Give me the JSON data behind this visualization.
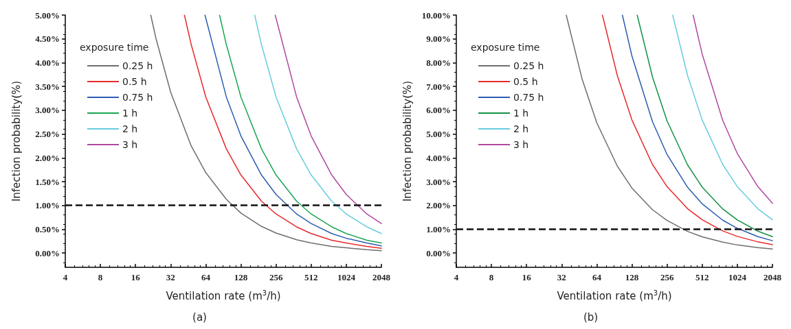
{
  "chart_data": [
    {
      "type": "line",
      "xlabel": "Ventilation rate (m$^{3}$/h)",
      "ylabel": "Infection probability(%)",
      "legend_title": "exposure time",
      "annotations": [
        "(a)"
      ],
      "log": "x",
      "xlim": [
        4,
        2048
      ],
      "xticks": [
        4,
        8,
        16,
        32,
        64,
        128,
        256,
        512,
        1024,
        2048
      ],
      "ylim": [
        -0.3,
        5
      ],
      "yticks": [
        {
          "value": 0,
          "label": "0.00%"
        },
        {
          "value": 0.5,
          "label": "0.50%"
        },
        {
          "value": 1,
          "label": "1.00%"
        },
        {
          "value": 1.5,
          "label": "1.50%"
        },
        {
          "value": 2,
          "label": "2.00%"
        },
        {
          "value": 2.5,
          "label": "2.50%"
        },
        {
          "value": 3,
          "label": "3.00%"
        },
        {
          "value": 3.5,
          "label": "3.50%"
        },
        {
          "value": 4,
          "label": "4.00%"
        },
        {
          "value": 4.5,
          "label": "4.50%"
        },
        {
          "value": 5,
          "label": "5.00%"
        }
      ],
      "grid": false,
      "legend": "top left",
      "marker": "none",
      "line_style": "solid",
      "ref_lines": [
        {
          "axis": "y",
          "value": 1,
          "color": "#111111",
          "line_style": "dashed"
        }
      ],
      "series": [
        {
          "name": "0.25 h",
          "color": "#6d6d6d",
          "x": [
            21.6,
            24,
            32,
            48,
            64,
            96,
            128,
            192,
            256,
            384,
            512,
            768,
            1024,
            1536,
            2048
          ],
          "values": [
            5.0,
            4.5,
            3.38,
            2.25,
            1.69,
            1.13,
            0.84,
            0.56,
            0.42,
            0.28,
            0.21,
            0.14,
            0.11,
            0.07,
            0.05
          ]
        },
        {
          "name": "0.5 h",
          "color": "#e8282a",
          "x": [
            42,
            48,
            64,
            96,
            128,
            192,
            256,
            384,
            512,
            768,
            1024,
            1536,
            2048
          ],
          "values": [
            5.0,
            4.38,
            3.28,
            2.19,
            1.64,
            1.09,
            0.82,
            0.55,
            0.41,
            0.27,
            0.21,
            0.14,
            0.1
          ]
        },
        {
          "name": "0.75 h",
          "color": "#2a5db0",
          "x": [
            63,
            96,
            128,
            192,
            256,
            384,
            512,
            768,
            1024,
            1536,
            2048
          ],
          "values": [
            5.0,
            3.28,
            2.46,
            1.64,
            1.23,
            0.82,
            0.62,
            0.41,
            0.31,
            0.21,
            0.15
          ]
        },
        {
          "name": "1 h",
          "color": "#1aa550",
          "x": [
            84,
            96,
            128,
            192,
            256,
            384,
            512,
            768,
            1024,
            1536,
            2048
          ],
          "values": [
            5.0,
            4.38,
            3.28,
            2.19,
            1.64,
            1.09,
            0.82,
            0.55,
            0.41,
            0.27,
            0.21
          ]
        },
        {
          "name": "2 h",
          "color": "#66ccdd",
          "x": [
            168,
            192,
            256,
            384,
            512,
            768,
            1024,
            1536,
            2048
          ],
          "values": [
            5.0,
            4.38,
            3.28,
            2.19,
            1.64,
            1.09,
            0.82,
            0.55,
            0.41
          ]
        },
        {
          "name": "3 h",
          "color": "#b0479e",
          "x": [
            252,
            384,
            512,
            768,
            1024,
            1536,
            2048
          ],
          "values": [
            5.0,
            3.28,
            2.46,
            1.64,
            1.23,
            0.82,
            0.62
          ]
        }
      ]
    },
    {
      "type": "line",
      "xlabel": "Ventilation rate (m$^{3}$/h)",
      "ylabel": "Infection probability(%)",
      "legend_title": "exposure time",
      "annotations": [
        "(b)"
      ],
      "log": "x",
      "xlim": [
        4,
        2048
      ],
      "xticks": [
        4,
        8,
        16,
        32,
        64,
        128,
        256,
        512,
        1024,
        2048
      ],
      "ylim": [
        -0.6,
        10
      ],
      "yticks": [
        {
          "value": 0,
          "label": "0.00%"
        },
        {
          "value": 1,
          "label": "1.00%"
        },
        {
          "value": 2,
          "label": "2.00%"
        },
        {
          "value": 3,
          "label": "3.00%"
        },
        {
          "value": 4,
          "label": "4.00%"
        },
        {
          "value": 5,
          "label": "5.00%"
        },
        {
          "value": 6,
          "label": "6.00%"
        },
        {
          "value": 7,
          "label": "7.00%"
        },
        {
          "value": 8,
          "label": "8.00%"
        },
        {
          "value": 9,
          "label": "9.00%"
        },
        {
          "value": 10,
          "label": "10.00%"
        }
      ],
      "grid": false,
      "legend": "top left",
      "marker": "none",
      "line_style": "solid",
      "ref_lines": [
        {
          "axis": "y",
          "value": 1,
          "color": "#111111",
          "line_style": "dashed"
        }
      ],
      "series": [
        {
          "name": "0.25 h",
          "color": "#6d6d6d",
          "x": [
            35,
            48,
            64,
            96,
            128,
            192,
            256,
            384,
            512,
            768,
            1024,
            1536,
            2048
          ],
          "values": [
            10.0,
            7.29,
            5.47,
            3.65,
            2.73,
            1.82,
            1.37,
            0.91,
            0.68,
            0.46,
            0.34,
            0.23,
            0.17
          ]
        },
        {
          "name": "0.5 h",
          "color": "#e8282a",
          "x": [
            71.5,
            96,
            128,
            192,
            256,
            384,
            512,
            768,
            1024,
            1536,
            2048
          ],
          "values": [
            10.0,
            7.45,
            5.59,
            3.72,
            2.79,
            1.86,
            1.4,
            0.93,
            0.7,
            0.47,
            0.35
          ]
        },
        {
          "name": "0.75 h",
          "color": "#2a5db0",
          "x": [
            106,
            128,
            192,
            256,
            384,
            512,
            768,
            1024,
            1536,
            2048
          ],
          "values": [
            10.0,
            8.28,
            5.52,
            4.14,
            2.76,
            2.07,
            1.38,
            1.04,
            0.69,
            0.52
          ]
        },
        {
          "name": "1 h",
          "color": "#119144",
          "x": [
            142,
            192,
            256,
            384,
            512,
            768,
            1024,
            1536,
            2048
          ],
          "values": [
            10.0,
            7.4,
            5.55,
            3.7,
            2.77,
            1.85,
            1.39,
            0.92,
            0.69
          ]
        },
        {
          "name": "2 h",
          "color": "#66ccdd",
          "x": [
            286,
            384,
            512,
            768,
            1024,
            1536,
            2048
          ],
          "values": [
            10.0,
            7.45,
            5.59,
            3.72,
            2.79,
            1.86,
            1.4
          ]
        },
        {
          "name": "3 h",
          "color": "#b0479e",
          "x": [
            428,
            512,
            768,
            1024,
            1536,
            2048
          ],
          "values": [
            10.0,
            8.36,
            5.57,
            4.18,
            2.79,
            2.09
          ]
        }
      ]
    }
  ]
}
